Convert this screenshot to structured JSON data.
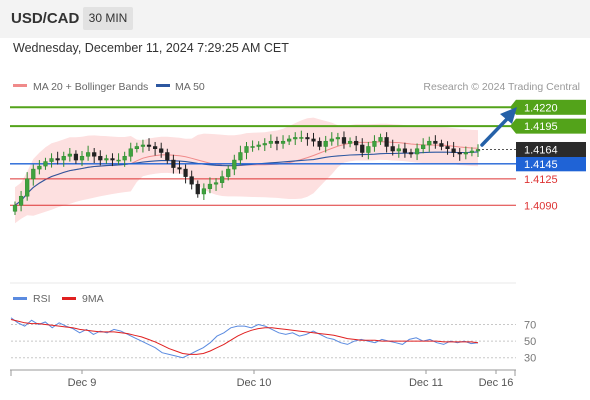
{
  "header": {
    "symbol": "USD/CAD",
    "timeframe": "30 MIN",
    "datetime": "Wednesday, December 11, 2024 7:29:25 AM CET"
  },
  "colors": {
    "green": "#53a31a",
    "red": "#dd3333",
    "blue": "#1f63d6",
    "ma20": "#f08a8a",
    "ma50": "#2d57a0",
    "bollinger_fill": "#fde0e0",
    "arrow": "#2561a8",
    "rsi": "#5b8be0",
    "rsi_ma": "#e02020"
  },
  "chart_data": [
    {
      "type": "candlestick",
      "legend": [
        {
          "label": "MA 20 + Bollinger Bands",
          "color": "#f08a8a"
        },
        {
          "label": "MA 50",
          "color": "#2d57a0"
        }
      ],
      "credit": "Research © 2024 Trading Central",
      "ylim": [
        1.402,
        1.4235
      ],
      "current_price": "1.4164",
      "levels": [
        {
          "value": 1.422,
          "label": "1.4220",
          "kind": "resistance",
          "color": "#53a31a",
          "style": "badge"
        },
        {
          "value": 1.4195,
          "label": "1.4195",
          "kind": "resistance",
          "color": "#53a31a",
          "style": "badge"
        },
        {
          "value": 1.4145,
          "label": "1.4145",
          "kind": "pivot",
          "color": "#1f63d6",
          "style": "badge"
        },
        {
          "value": 1.4125,
          "label": "1.4125",
          "kind": "support",
          "color": "#dd3333",
          "style": "text"
        },
        {
          "value": 1.409,
          "label": "1.4090",
          "kind": "support",
          "color": "#dd3333",
          "style": "text"
        }
      ],
      "x_ticks": [
        "Dec 9",
        "Dec 10",
        "Dec 11",
        "Dec 16"
      ],
      "closes": [
        1.409,
        1.4102,
        1.4125,
        1.4138,
        1.4142,
        1.4148,
        1.4152,
        1.415,
        1.4155,
        1.4158,
        1.415,
        1.4155,
        1.416,
        1.4155,
        1.415,
        1.4152,
        1.415,
        1.415,
        1.4155,
        1.4165,
        1.4168,
        1.417,
        1.4168,
        1.4165,
        1.416,
        1.415,
        1.414,
        1.4138,
        1.4128,
        1.4118,
        1.4105,
        1.4112,
        1.4118,
        1.412,
        1.4128,
        1.4138,
        1.415,
        1.416,
        1.4168,
        1.4168,
        1.417,
        1.4172,
        1.4175,
        1.4172,
        1.4175,
        1.4178,
        1.418,
        1.418,
        1.4178,
        1.4175,
        1.4168,
        1.4175,
        1.4178,
        1.418,
        1.4172,
        1.4175,
        1.417,
        1.416,
        1.4168,
        1.4175,
        1.418,
        1.4168,
        1.4162,
        1.4165,
        1.416,
        1.4158,
        1.4165,
        1.417,
        1.4175,
        1.4172,
        1.4168,
        1.4165,
        1.416,
        1.4158,
        1.416,
        1.4162,
        1.4164
      ]
    },
    {
      "type": "line",
      "legend": [
        {
          "label": "RSI",
          "color": "#5b8be0"
        },
        {
          "label": "9MA",
          "color": "#e02020"
        }
      ],
      "ylim": [
        20,
        85
      ],
      "y_ticks": [
        "70",
        "50",
        "30"
      ],
      "rsi": [
        78,
        72,
        68,
        75,
        70,
        73,
        66,
        72,
        68,
        65,
        60,
        64,
        58,
        62,
        60,
        64,
        62,
        58,
        54,
        50,
        46,
        42,
        36,
        34,
        32,
        30,
        34,
        38,
        42,
        48,
        56,
        60,
        66,
        68,
        68,
        66,
        70,
        68,
        64,
        60,
        58,
        60,
        56,
        58,
        62,
        58,
        54,
        52,
        48,
        46,
        50,
        52,
        50,
        48,
        52,
        50,
        48,
        46,
        52,
        54,
        50,
        52,
        48,
        46,
        50,
        48,
        50,
        47,
        48
      ],
      "ma9": [
        76,
        74,
        72,
        71,
        71,
        70,
        69,
        68,
        67,
        66,
        64,
        63,
        62,
        61,
        61,
        61,
        60,
        59,
        57,
        55,
        52,
        49,
        45,
        41,
        38,
        35,
        34,
        34,
        35,
        38,
        42,
        46,
        51,
        56,
        60,
        63,
        65,
        66,
        66,
        65,
        64,
        63,
        62,
        61,
        60,
        59,
        58,
        57,
        55,
        53,
        52,
        51,
        51,
        51,
        50,
        50,
        50,
        50,
        50,
        50,
        50,
        50,
        50,
        49,
        49,
        49,
        49,
        49,
        48
      ]
    }
  ]
}
